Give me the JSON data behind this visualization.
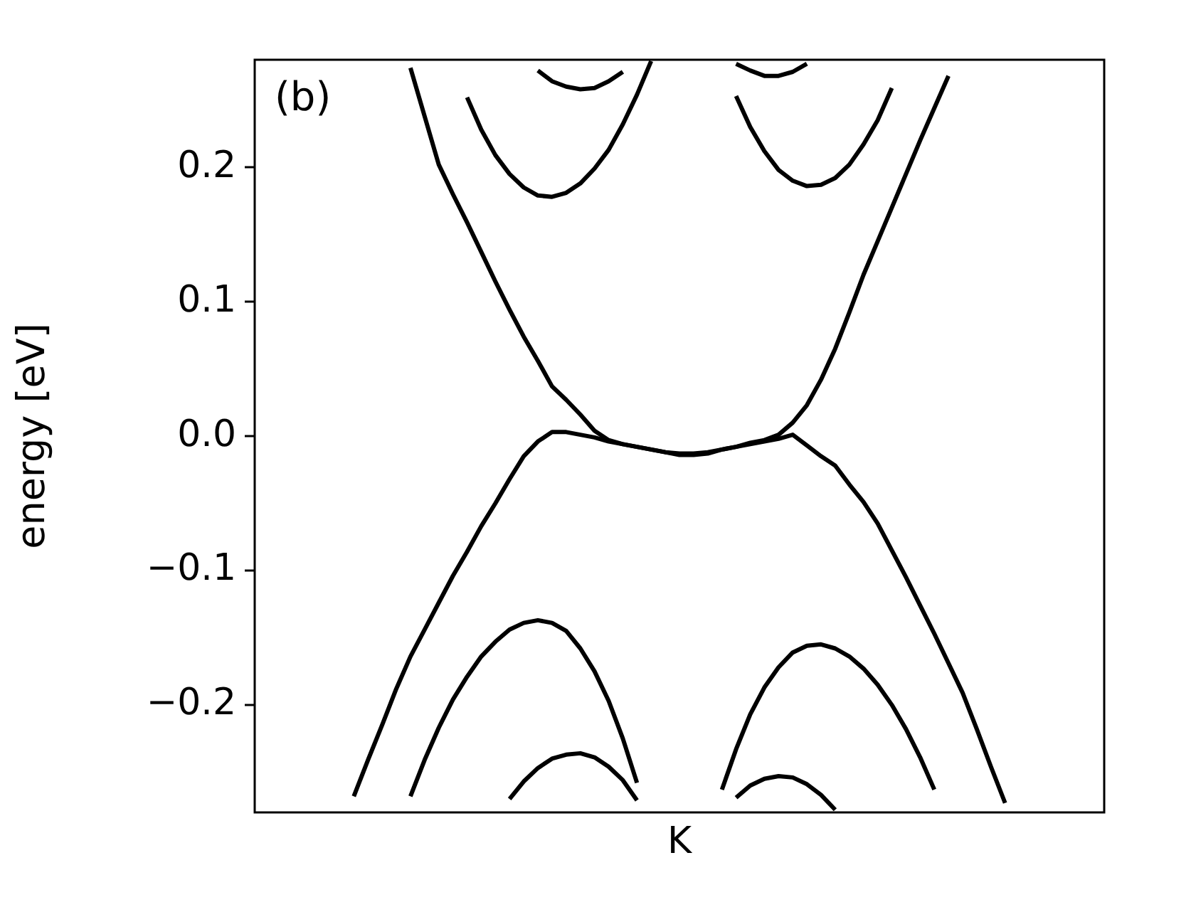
{
  "chart_data": {
    "type": "line",
    "ylabel": "energy [eV]",
    "annotations": [
      "(b)"
    ],
    "grid": false,
    "line_style": "solid",
    "ylim": [
      -0.28,
      0.28
    ],
    "yticks": [
      {
        "value": -0.2,
        "label": "−0.2"
      },
      {
        "value": -0.1,
        "label": "−0.1"
      },
      {
        "value": 0,
        "label": "0.0"
      },
      0.1,
      0.2
    ],
    "categories": [
      null,
      null,
      null,
      null,
      null,
      null,
      null,
      null,
      null,
      null,
      null,
      null,
      null,
      null,
      null,
      null,
      null,
      null,
      null,
      null,
      null,
      null,
      null,
      null,
      null,
      null,
      null,
      null,
      null,
      null,
      "K",
      null,
      null,
      null,
      null,
      null,
      null,
      null,
      null,
      null,
      null,
      null,
      null,
      null,
      null,
      null,
      null,
      null,
      null,
      null,
      null,
      null,
      null,
      null,
      null,
      null,
      null,
      null,
      null,
      null,
      null
    ],
    "series": [
      {
        "color": "#000000",
        "values": [
          null,
          null,
          null,
          null,
          null,
          null,
          null,
          -0.268,
          -0.241,
          -0.215,
          -0.188,
          -0.164,
          -0.144,
          -0.124,
          -0.104,
          -0.086,
          -0.067,
          -0.05,
          -0.032,
          -0.015,
          -0.004,
          0.003,
          0.003,
          0.001,
          -0.001,
          -0.004,
          -0.006,
          -0.008,
          -0.01,
          -0.012,
          -0.014,
          -0.014,
          -0.013,
          -0.01,
          -0.008,
          -0.006,
          -0.004,
          -0.002,
          0.001,
          -0.007,
          -0.015,
          -0.022,
          -0.036,
          -0.049,
          -0.065,
          -0.085,
          -0.105,
          -0.126,
          -0.147,
          -0.169,
          -0.191,
          -0.218,
          -0.246,
          -0.273,
          null,
          null,
          null,
          null,
          null,
          null,
          null
        ]
      },
      {
        "color": "#000000",
        "values": [
          null,
          null,
          null,
          null,
          null,
          null,
          null,
          null,
          null,
          null,
          null,
          0.274,
          0.238,
          0.202,
          0.18,
          0.159,
          0.137,
          0.115,
          0.094,
          0.074,
          0.056,
          0.037,
          0.027,
          0.016,
          0.004,
          -0.003,
          -0.006,
          -0.008,
          -0.01,
          -0.012,
          -0.013,
          -0.013,
          -0.012,
          -0.01,
          -0.008,
          -0.005,
          -0.003,
          0.001,
          0.01,
          0.023,
          0.042,
          0.065,
          0.092,
          0.12,
          0.145,
          0.17,
          0.195,
          0.22,
          0.244,
          0.268,
          null,
          null,
          null,
          null,
          null,
          null,
          null,
          null,
          null,
          null,
          null
        ]
      },
      {
        "color": "#000000",
        "values": [
          null,
          null,
          null,
          null,
          null,
          null,
          null,
          null,
          null,
          null,
          null,
          null,
          null,
          null,
          null,
          0.252,
          0.228,
          0.209,
          0.195,
          0.185,
          0.179,
          0.178,
          0.181,
          0.188,
          0.199,
          0.213,
          0.232,
          0.254,
          0.279,
          null,
          null,
          null,
          null,
          null,
          null,
          null,
          null,
          null,
          null,
          null,
          null,
          null,
          null,
          null,
          null,
          null,
          null,
          null,
          null,
          null,
          null,
          null,
          null,
          null,
          null,
          null,
          null,
          null,
          null,
          null,
          null
        ]
      },
      {
        "color": "#000000",
        "values": [
          null,
          null,
          null,
          null,
          null,
          null,
          null,
          null,
          null,
          null,
          null,
          null,
          null,
          null,
          null,
          null,
          null,
          null,
          null,
          null,
          null,
          null,
          null,
          null,
          null,
          null,
          null,
          null,
          null,
          null,
          null,
          null,
          null,
          null,
          0.253,
          0.23,
          0.212,
          0.198,
          0.19,
          0.186,
          0.187,
          0.192,
          0.202,
          0.217,
          0.235,
          0.259,
          null,
          null,
          null,
          null,
          null,
          null,
          null,
          null,
          null,
          null,
          null,
          null,
          null,
          null,
          null
        ]
      },
      {
        "color": "#000000",
        "values": [
          null,
          null,
          null,
          null,
          null,
          null,
          null,
          null,
          null,
          null,
          null,
          null,
          null,
          null,
          null,
          null,
          null,
          null,
          null,
          null,
          0.272,
          0.264,
          0.26,
          0.258,
          0.259,
          0.264,
          0.271,
          null,
          null,
          null,
          null,
          null,
          null,
          null,
          null,
          null,
          null,
          null,
          null,
          null,
          null,
          null,
          null,
          null,
          null,
          null,
          null,
          null,
          null,
          null,
          null,
          null,
          null,
          null,
          null,
          null,
          null,
          null,
          null,
          null,
          null
        ]
      },
      {
        "color": "#000000",
        "values": [
          null,
          null,
          null,
          null,
          null,
          null,
          null,
          null,
          null,
          null,
          null,
          null,
          null,
          null,
          null,
          null,
          null,
          null,
          null,
          null,
          null,
          null,
          null,
          null,
          null,
          null,
          null,
          null,
          null,
          null,
          null,
          null,
          null,
          null,
          0.277,
          0.272,
          0.268,
          0.268,
          0.271,
          0.277,
          null,
          null,
          null,
          null,
          null,
          null,
          null,
          null,
          null,
          null,
          null,
          null,
          null,
          null,
          null,
          null,
          null,
          null,
          null,
          null,
          null
        ]
      },
      {
        "color": "#000000",
        "values": [
          null,
          null,
          null,
          null,
          null,
          null,
          null,
          null,
          null,
          null,
          null,
          -0.268,
          -0.241,
          -0.217,
          -0.196,
          -0.179,
          -0.164,
          -0.153,
          -0.144,
          -0.139,
          -0.137,
          -0.139,
          -0.145,
          -0.158,
          -0.175,
          -0.197,
          -0.225,
          -0.258,
          null,
          null,
          null,
          null,
          null,
          null,
          null,
          null,
          null,
          null,
          null,
          null,
          null,
          null,
          null,
          null,
          null,
          null,
          null,
          null,
          null,
          null,
          null,
          null,
          null,
          null,
          null,
          null,
          null,
          null,
          null,
          null,
          null
        ]
      },
      {
        "color": "#000000",
        "values": [
          null,
          null,
          null,
          null,
          null,
          null,
          null,
          null,
          null,
          null,
          null,
          null,
          null,
          null,
          null,
          null,
          null,
          null,
          null,
          null,
          null,
          null,
          null,
          null,
          null,
          null,
          null,
          null,
          null,
          null,
          null,
          null,
          null,
          -0.263,
          -0.233,
          -0.207,
          -0.187,
          -0.172,
          -0.161,
          -0.156,
          -0.155,
          -0.158,
          -0.164,
          -0.173,
          -0.185,
          -0.2,
          -0.218,
          -0.239,
          -0.263,
          null,
          null,
          null,
          null,
          null,
          null,
          null,
          null,
          null,
          null,
          null,
          null
        ]
      },
      {
        "color": "#000000",
        "values": [
          null,
          null,
          null,
          null,
          null,
          null,
          null,
          null,
          null,
          null,
          null,
          null,
          null,
          null,
          null,
          null,
          null,
          null,
          -0.27,
          -0.257,
          -0.247,
          -0.24,
          -0.237,
          -0.236,
          -0.239,
          -0.246,
          -0.256,
          -0.271,
          null,
          null,
          null,
          null,
          null,
          null,
          null,
          null,
          null,
          null,
          null,
          null,
          null,
          null,
          null,
          null,
          null,
          null,
          null,
          null,
          null,
          null,
          null,
          null,
          null,
          null,
          null,
          null,
          null,
          null,
          null,
          null,
          null
        ]
      },
      {
        "color": "#000000",
        "values": [
          null,
          null,
          null,
          null,
          null,
          null,
          null,
          null,
          null,
          null,
          null,
          null,
          null,
          null,
          null,
          null,
          null,
          null,
          null,
          null,
          null,
          null,
          null,
          null,
          null,
          null,
          null,
          null,
          null,
          null,
          null,
          null,
          null,
          null,
          -0.269,
          -0.26,
          -0.255,
          -0.253,
          -0.254,
          -0.259,
          -0.267,
          -0.278,
          null,
          null,
          null,
          null,
          null,
          null,
          null,
          null,
          null,
          null,
          null,
          null,
          null,
          null,
          null,
          null,
          null,
          null,
          null
        ]
      }
    ]
  }
}
